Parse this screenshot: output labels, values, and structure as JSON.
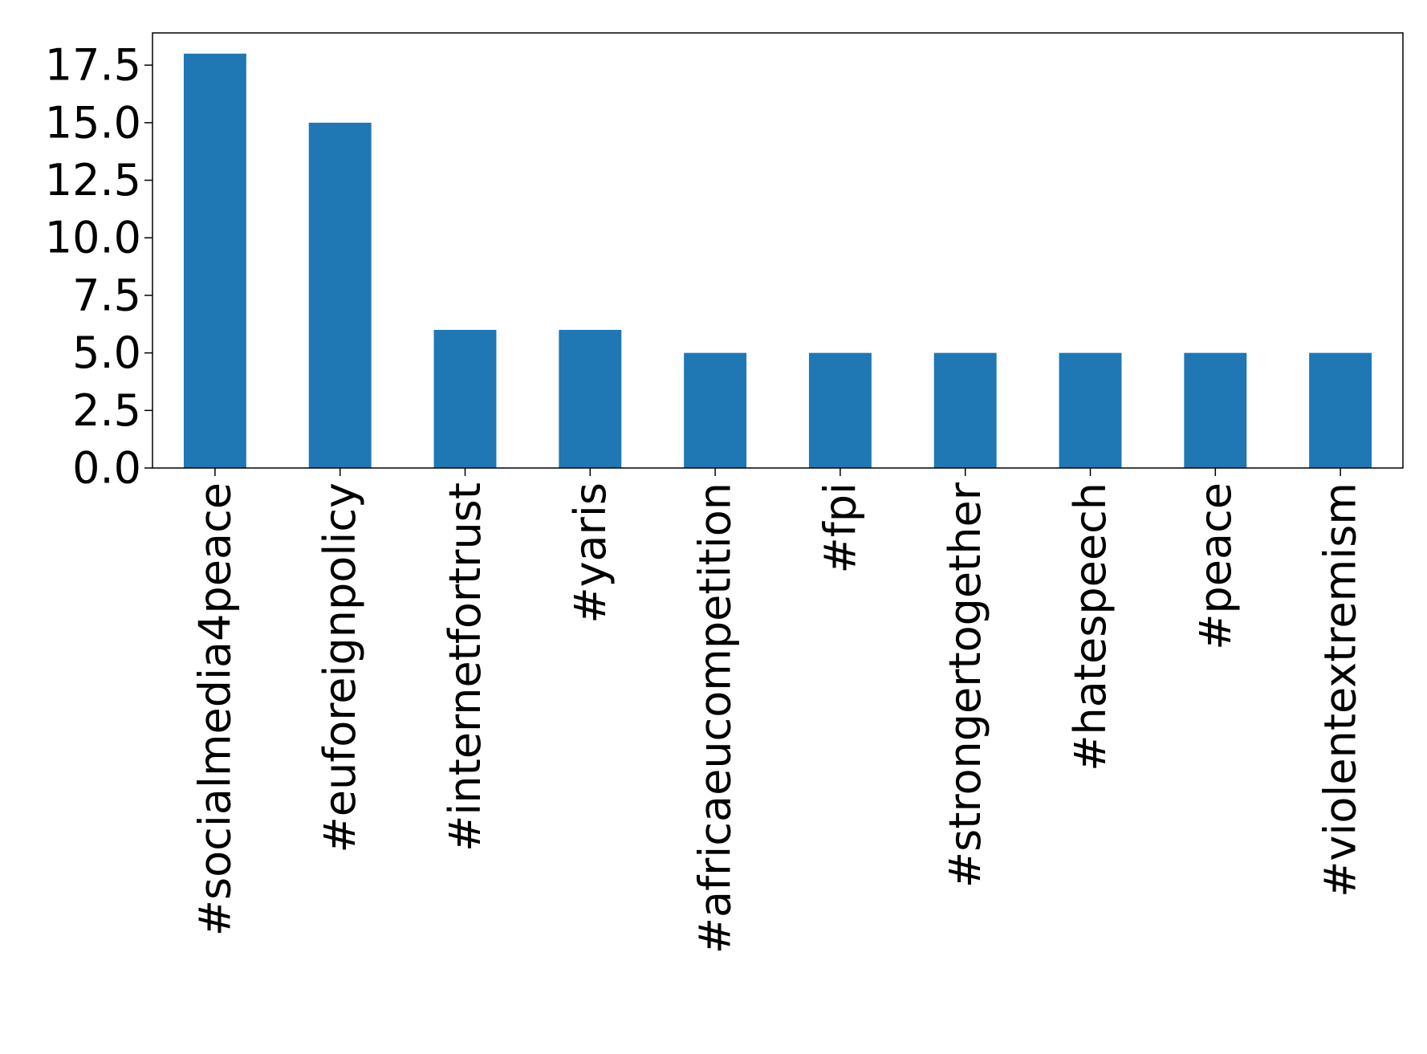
{
  "chart_data": {
    "type": "bar",
    "title": "",
    "xlabel": "",
    "ylabel": "",
    "categories": [
      "#socialmedia4peace",
      "#euforeignpolicy",
      "#internetfortrust",
      "#yaris",
      "#africaeucompetition",
      "#fpi",
      "#strongertogether",
      "#hatespeech",
      "#peace",
      "#violentextremism"
    ],
    "values": [
      18,
      15,
      6,
      6,
      5,
      5,
      5,
      5,
      5,
      5
    ],
    "ylim": [
      0,
      18.9
    ],
    "yticks": [
      0.0,
      2.5,
      5.0,
      7.5,
      10.0,
      12.5,
      15.0,
      17.5
    ],
    "ytick_labels": [
      "0.0",
      "2.5",
      "5.0",
      "7.5",
      "10.0",
      "12.5",
      "15.0",
      "17.5"
    ],
    "bar_color": "#1f77b4",
    "grid": false,
    "legend": "none"
  }
}
